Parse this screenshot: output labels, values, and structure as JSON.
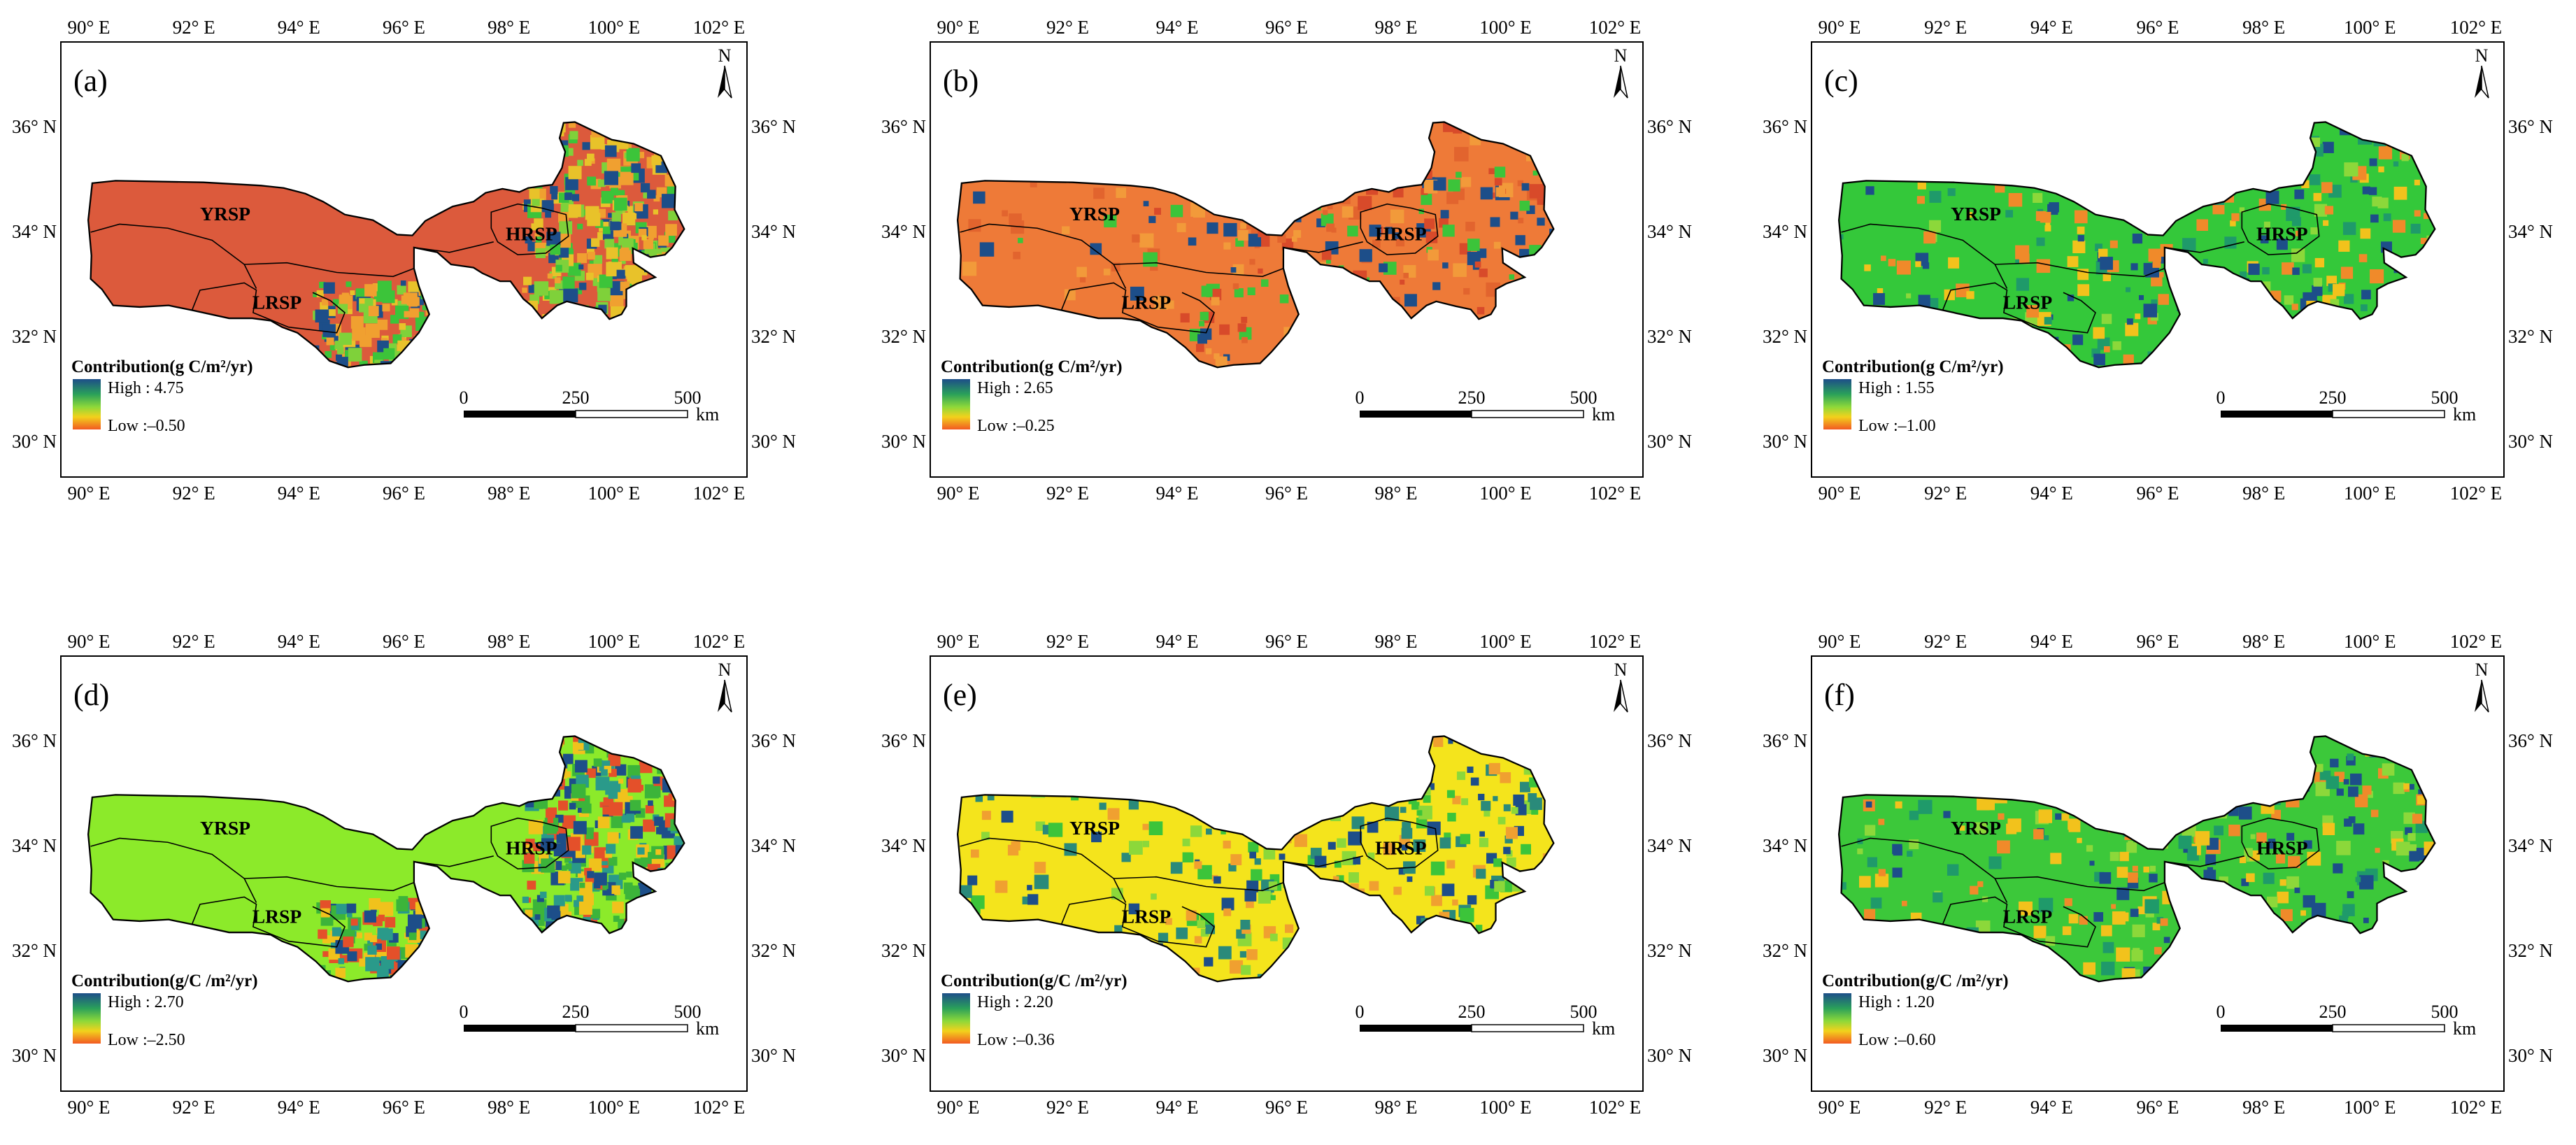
{
  "figure": {
    "lon_labels": [
      "90° E",
      "92° E",
      "94° E",
      "96° E",
      "98° E",
      "100° E",
      "102° E"
    ],
    "lat_labels": [
      "36° N",
      "34° N",
      "32° N",
      "30° N"
    ],
    "region_labels": {
      "yrsp": "YRSP",
      "lrsp": "LRSP",
      "hrsp": "HRSP"
    },
    "north_label": "N",
    "scale": {
      "v0": "0",
      "v1": "250",
      "v2": "500",
      "unit": "km"
    }
  },
  "panels": [
    {
      "id": "a",
      "label": "(a)",
      "legend_title": "Contribution(g C/m²/yr)",
      "high": "High : 4.75",
      "low": "Low :–0.50",
      "scheme": "red",
      "colors": {
        "base": "#dc5a3c",
        "high": "#1d4e89",
        "low": "#f25a22"
      }
    },
    {
      "id": "b",
      "label": "(b)",
      "legend_title": "Contribution(g C/m²/yr)",
      "high": "High : 2.65",
      "low": "Low :–0.25",
      "scheme": "orange",
      "colors": {
        "base": "#ee7a38",
        "high": "#1d4e89",
        "low": "#f25a22"
      }
    },
    {
      "id": "c",
      "label": "(c)",
      "legend_title": "Contribution(g C/m²/yr)",
      "high": "High : 1.55",
      "low": "Low :–1.00",
      "scheme": "green",
      "colors": {
        "base": "#34c83a",
        "high": "#1d4e89",
        "low": "#f25a22"
      }
    },
    {
      "id": "d",
      "label": "(d)",
      "legend_title": "Contribution(g/C /m²/yr)",
      "high": "High : 2.70",
      "low": "Low :–2.50",
      "scheme": "lime",
      "colors": {
        "base": "#8cea2a",
        "high": "#1d4e89",
        "low": "#f25a22"
      }
    },
    {
      "id": "e",
      "label": "(e)",
      "legend_title": "Contribution(g/C /m²/yr)",
      "high": "High : 2.20",
      "low": "Low :–0.36",
      "scheme": "yellow",
      "colors": {
        "base": "#f4e41c",
        "high": "#1d4e89",
        "low": "#f25a22"
      }
    },
    {
      "id": "f",
      "label": "(f)",
      "legend_title": "Contribution(g/C /m²/yr)",
      "high": "High : 1.20",
      "low": "Low :–0.60",
      "scheme": "green",
      "colors": {
        "base": "#3cc83a",
        "high": "#1d4e89",
        "low": "#f25a22"
      }
    }
  ]
}
